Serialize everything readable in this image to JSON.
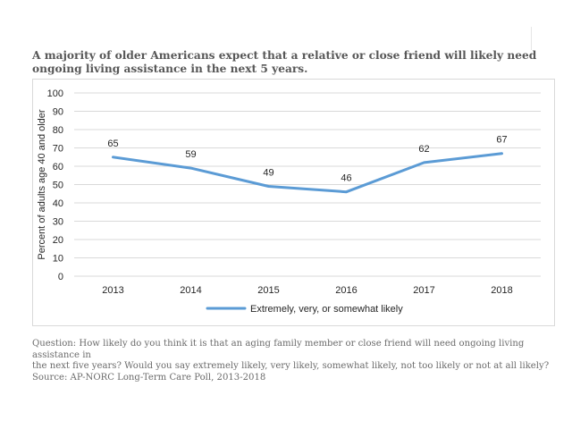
{
  "title": "A majority of older Americans expect that a relative or close friend will likely need ongoing living assistance in the next 5 years.",
  "footnote": {
    "question_line1": "Question: How likely do you think it is that an aging family member or close friend will need ongoing living assistance in",
    "question_line2": "the next five years? Would you say extremely likely, very likely, somewhat likely, not too likely or not at all likely?",
    "source": "Source: AP-NORC Long-Term Care Poll, 2013-2018"
  },
  "chart_data": {
    "type": "line",
    "title": "",
    "xlabel": "",
    "ylabel": "Percent of adults age 40 and older",
    "categories": [
      "2013",
      "2014",
      "2015",
      "2016",
      "2017",
      "2018"
    ],
    "series": [
      {
        "name": "Extremely, very, or somewhat likely",
        "values": [
          65,
          59,
          49,
          46,
          62,
          67
        ],
        "color": "#5b9bd5"
      }
    ],
    "ylim": [
      0,
      100
    ],
    "yticks": [
      0,
      10,
      20,
      30,
      40,
      50,
      60,
      70,
      80,
      90,
      100
    ],
    "grid": true,
    "legend": "bottom-center",
    "data_labels": true,
    "colors": {
      "grid": "#d9d9d9",
      "text": "#262626"
    }
  }
}
